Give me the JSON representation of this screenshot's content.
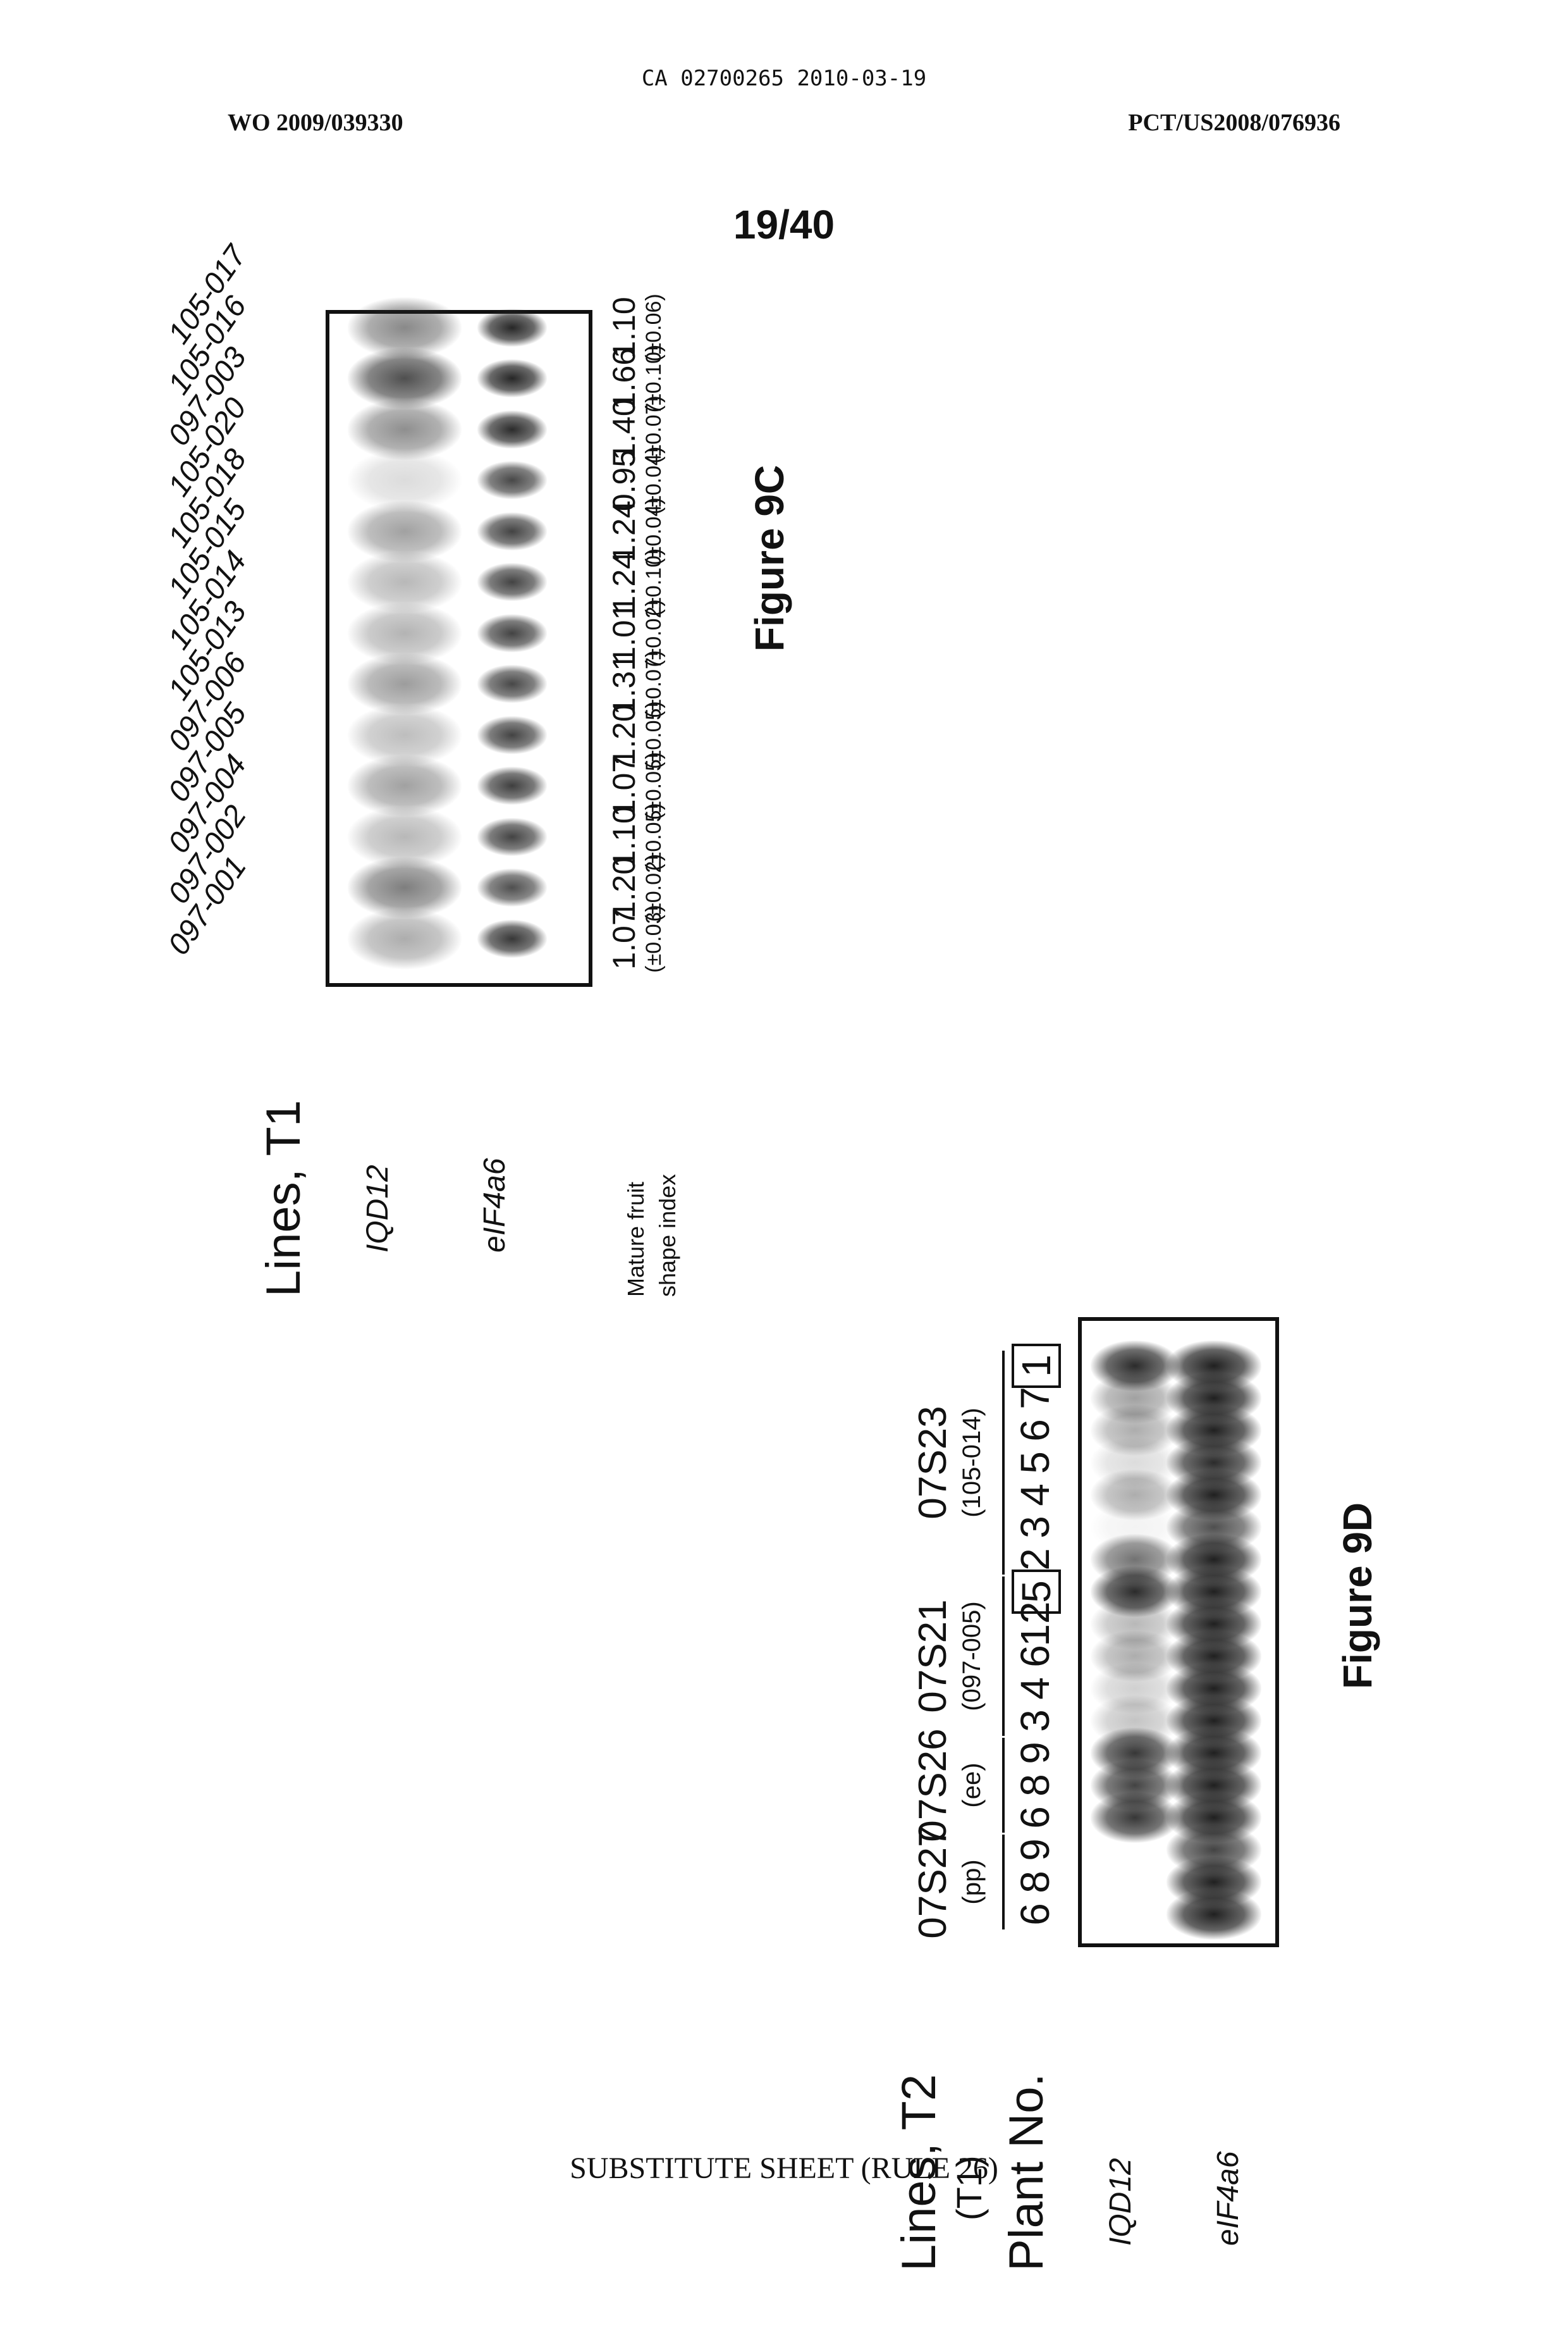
{
  "header": {
    "ca_number": "CA 02700265 2010-03-19",
    "wo_number": "WO 2009/039330",
    "pct_number": "PCT/US2008/076936",
    "page": "19/40"
  },
  "footer": "SUBSTITUTE SHEET (RULE 26)",
  "fig9c": {
    "caption": "Figure 9C",
    "title": "Lines, T1",
    "row_labels": {
      "iqd": "IQD12",
      "eif": "eIF4a6",
      "shape1": "Mature fruit",
      "shape2": "shape index"
    },
    "lanes": [
      {
        "line": "097-001",
        "index": "1.07",
        "err": "(±0.03)",
        "iqd": 0.35,
        "eif": 0.85
      },
      {
        "line": "097-002",
        "index": "1.20",
        "err": "(±0.02)",
        "iqd": 0.55,
        "eif": 0.75
      },
      {
        "line": "097-004",
        "index": "1.10",
        "err": "(±0.05)",
        "iqd": 0.3,
        "eif": 0.8
      },
      {
        "line": "097-005",
        "index": "1.07",
        "err": "(±0.05)",
        "iqd": 0.4,
        "eif": 0.82
      },
      {
        "line": "097-006",
        "index": "1.20",
        "err": "(±0.05)",
        "iqd": 0.28,
        "eif": 0.8
      },
      {
        "line": "105-013",
        "index": "1.31",
        "err": "(±0.07)",
        "iqd": 0.42,
        "eif": 0.78
      },
      {
        "line": "105-014",
        "index": "1.01",
        "err": "(±0.02)",
        "iqd": 0.32,
        "eif": 0.8
      },
      {
        "line": "105-015",
        "index": "1.24",
        "err": "(±0.10)",
        "iqd": 0.3,
        "eif": 0.8
      },
      {
        "line": "105-018",
        "index": "1.24",
        "err": "(±0.04)",
        "iqd": 0.4,
        "eif": 0.8
      },
      {
        "line": "105-020",
        "index": "0.95",
        "err": "(±0.04)",
        "iqd": 0.15,
        "eif": 0.78
      },
      {
        "line": "097-003",
        "index": "1.40",
        "err": "(±0.07)",
        "iqd": 0.48,
        "eif": 0.9
      },
      {
        "line": "105-016",
        "index": "1.66",
        "err": "(±0.10)",
        "iqd": 0.75,
        "eif": 0.92
      },
      {
        "line": "105-017",
        "index": "1.10",
        "err": "(±0.06)",
        "iqd": 0.5,
        "eif": 0.92
      }
    ]
  },
  "fig9d": {
    "caption": "Figure 9D",
    "title": "Lines, T2",
    "subtitle": "(T1)",
    "plant_label": "Plant No.",
    "row_labels": {
      "iqd": "IQD12",
      "eif": "eIF4a6"
    },
    "groups": [
      {
        "name": "07S27",
        "sub": "(pp)"
      },
      {
        "name": "07S26",
        "sub": "(ee)"
      },
      {
        "name": "07S21",
        "sub": "(097-005)"
      },
      {
        "name": "07S23",
        "sub": "(105-014)"
      }
    ],
    "lanes": [
      {
        "group": 0,
        "plant": "6",
        "iqd": 0.0,
        "eif": 0.95,
        "boxed": false
      },
      {
        "group": 0,
        "plant": "8",
        "iqd": 0.0,
        "eif": 0.95,
        "boxed": false
      },
      {
        "group": 0,
        "plant": "9",
        "iqd": 0.0,
        "eif": 0.8,
        "boxed": false
      },
      {
        "group": 1,
        "plant": "6",
        "iqd": 0.85,
        "eif": 0.95,
        "boxed": false
      },
      {
        "group": 1,
        "plant": "8",
        "iqd": 0.8,
        "eif": 0.95,
        "boxed": false
      },
      {
        "group": 1,
        "plant": "9",
        "iqd": 0.85,
        "eif": 0.95,
        "boxed": false
      },
      {
        "group": 2,
        "plant": "3",
        "iqd": 0.25,
        "eif": 0.95,
        "boxed": false
      },
      {
        "group": 2,
        "plant": "4",
        "iqd": 0.2,
        "eif": 0.95,
        "boxed": false
      },
      {
        "group": 2,
        "plant": "6",
        "iqd": 0.35,
        "eif": 0.95,
        "boxed": false
      },
      {
        "group": 2,
        "plant": "12",
        "iqd": 0.3,
        "eif": 0.95,
        "boxed": false
      },
      {
        "group": 2,
        "plant": "5",
        "iqd": 0.9,
        "eif": 0.95,
        "boxed": true
      },
      {
        "group": 3,
        "plant": "2",
        "iqd": 0.6,
        "eif": 0.95,
        "boxed": false
      },
      {
        "group": 3,
        "plant": "3",
        "iqd": 0.05,
        "eif": 0.75,
        "boxed": false
      },
      {
        "group": 3,
        "plant": "4",
        "iqd": 0.35,
        "eif": 0.95,
        "boxed": false
      },
      {
        "group": 3,
        "plant": "5",
        "iqd": 0.15,
        "eif": 0.9,
        "boxed": false
      },
      {
        "group": 3,
        "plant": "6",
        "iqd": 0.35,
        "eif": 0.95,
        "boxed": false
      },
      {
        "group": 3,
        "plant": "7",
        "iqd": 0.4,
        "eif": 0.95,
        "boxed": false
      },
      {
        "group": 3,
        "plant": "1",
        "iqd": 0.9,
        "eif": 0.95,
        "boxed": true
      }
    ]
  }
}
